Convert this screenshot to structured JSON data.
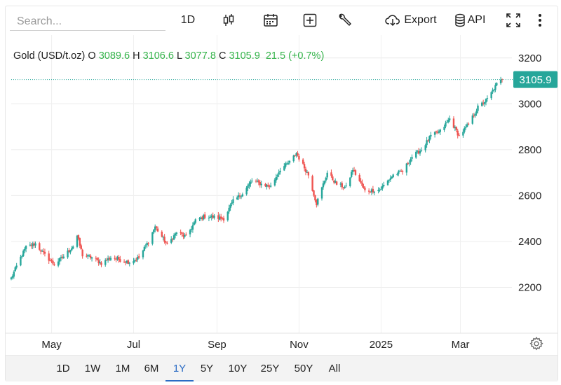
{
  "search": {
    "placeholder": "Search..."
  },
  "toolbar": {
    "interval_label": "1D",
    "export_label": "Export",
    "api_label": "API",
    "icons": [
      "candlestick-icon",
      "calendar-icon",
      "add-indicator-icon",
      "wrench-icon",
      "cloud-download-icon",
      "database-icon",
      "fullscreen-icon",
      "more-vertical-icon"
    ]
  },
  "legend": {
    "name": "Gold (USD/t.oz)",
    "o_label": "O",
    "o_value": "3089.6",
    "h_label": "H",
    "h_value": "3106.6",
    "l_label": "L",
    "l_value": "3077.8",
    "c_label": "C",
    "c_value": "3105.9",
    "change": "21.5 (+0.7%)"
  },
  "ranges": {
    "items": [
      "1D",
      "1W",
      "1M",
      "6M",
      "1Y",
      "5Y",
      "10Y",
      "25Y",
      "50Y",
      "All"
    ],
    "active": "1Y"
  },
  "colors": {
    "up": "#26a69a",
    "down": "#ef5350",
    "price_line": "#26a69a",
    "active_tab": "#2b6cc4"
  },
  "chart_data": {
    "type": "candlestick",
    "title": "Gold (USD/t.oz)",
    "x_tick_labels": [
      "May",
      "Jul",
      "Sep",
      "Nov",
      "2025",
      "Mar"
    ],
    "y_tick_labels": [
      "2200",
      "2400",
      "2600",
      "2800",
      "3000",
      "3200"
    ],
    "ylim": [
      2000,
      3300
    ],
    "last_price_label": "3105.9",
    "last_price": 3105.9,
    "grid": true,
    "y_axis_side": "right",
    "series": [
      {
        "date": "2024-04-01",
        "close": 2240
      },
      {
        "date": "2024-04-08",
        "close": 2330
      },
      {
        "date": "2024-04-12",
        "close": 2375
      },
      {
        "date": "2024-04-19",
        "close": 2390
      },
      {
        "date": "2024-04-26",
        "close": 2340
      },
      {
        "date": "2024-05-03",
        "close": 2300
      },
      {
        "date": "2024-05-10",
        "close": 2335
      },
      {
        "date": "2024-05-17",
        "close": 2380
      },
      {
        "date": "2024-05-20",
        "close": 2425
      },
      {
        "date": "2024-05-24",
        "close": 2340
      },
      {
        "date": "2024-05-31",
        "close": 2330
      },
      {
        "date": "2024-06-07",
        "close": 2305
      },
      {
        "date": "2024-06-14",
        "close": 2330
      },
      {
        "date": "2024-06-21",
        "close": 2320
      },
      {
        "date": "2024-06-28",
        "close": 2310
      },
      {
        "date": "2024-07-05",
        "close": 2330
      },
      {
        "date": "2024-07-12",
        "close": 2400
      },
      {
        "date": "2024-07-17",
        "close": 2465
      },
      {
        "date": "2024-07-26",
        "close": 2385
      },
      {
        "date": "2024-08-02",
        "close": 2440
      },
      {
        "date": "2024-08-09",
        "close": 2420
      },
      {
        "date": "2024-08-16",
        "close": 2490
      },
      {
        "date": "2024-08-23",
        "close": 2510
      },
      {
        "date": "2024-08-30",
        "close": 2505
      },
      {
        "date": "2024-09-06",
        "close": 2500
      },
      {
        "date": "2024-09-13",
        "close": 2575
      },
      {
        "date": "2024-09-20",
        "close": 2610
      },
      {
        "date": "2024-09-27",
        "close": 2665
      },
      {
        "date": "2024-10-04",
        "close": 2650
      },
      {
        "date": "2024-10-11",
        "close": 2640
      },
      {
        "date": "2024-10-18",
        "close": 2715
      },
      {
        "date": "2024-10-25",
        "close": 2745
      },
      {
        "date": "2024-10-30",
        "close": 2785
      },
      {
        "date": "2024-11-08",
        "close": 2690
      },
      {
        "date": "2024-11-14",
        "close": 2565
      },
      {
        "date": "2024-11-22",
        "close": 2700
      },
      {
        "date": "2024-11-29",
        "close": 2650
      },
      {
        "date": "2024-12-06",
        "close": 2635
      },
      {
        "date": "2024-12-11",
        "close": 2715
      },
      {
        "date": "2024-12-20",
        "close": 2620
      },
      {
        "date": "2024-12-31",
        "close": 2625
      },
      {
        "date": "2025-01-10",
        "close": 2690
      },
      {
        "date": "2025-01-17",
        "close": 2705
      },
      {
        "date": "2025-01-24",
        "close": 2770
      },
      {
        "date": "2025-01-31",
        "close": 2800
      },
      {
        "date": "2025-02-07",
        "close": 2860
      },
      {
        "date": "2025-02-14",
        "close": 2880
      },
      {
        "date": "2025-02-21",
        "close": 2935
      },
      {
        "date": "2025-02-28",
        "close": 2860
      },
      {
        "date": "2025-03-07",
        "close": 2910
      },
      {
        "date": "2025-03-14",
        "close": 2985
      },
      {
        "date": "2025-03-21",
        "close": 3020
      },
      {
        "date": "2025-03-28",
        "close": 3085
      },
      {
        "date": "2025-04-01",
        "close": 3105.9
      }
    ]
  }
}
